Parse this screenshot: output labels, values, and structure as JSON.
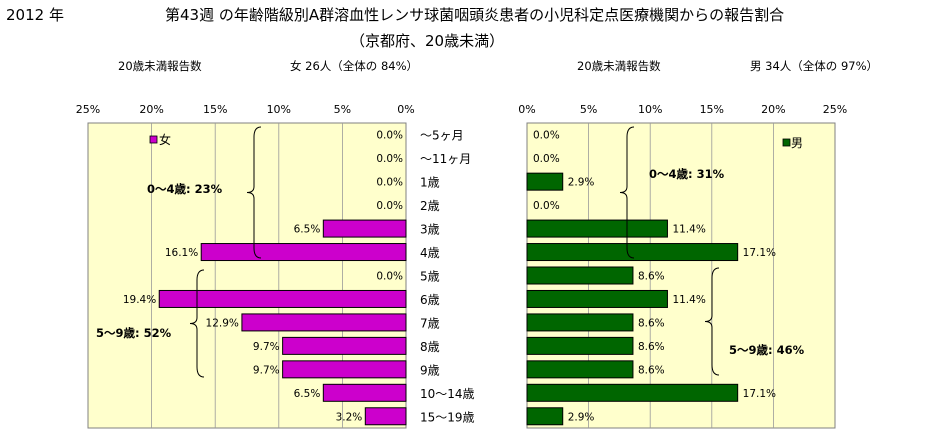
{
  "header": {
    "year": "2012 年",
    "title_line1": "第43週 の年齢階級別A群溶血性レンサ球菌咽頭炎患者の小児科定点医療機関からの報告割合",
    "title_line2": "（京都府、20歳未満）"
  },
  "female_panel": {
    "subtitle_left": "20歳未満報告数",
    "subtitle_right": "女  26人（全体の  84%）",
    "legend": "女",
    "bracket_label_1": "0〜4歳:  23%",
    "bracket_label_2": "5〜9歳:  52%"
  },
  "male_panel": {
    "subtitle_left": "20歳未満報告数",
    "subtitle_right": "男  34人（全体の  97%）",
    "legend": "男",
    "bracket_label_1": "0〜4歳:  31%",
    "bracket_label_2": "5〜9歳:  46%"
  },
  "colors": {
    "female": "#CC00CC",
    "male": "#006600",
    "plot_bg": "#FFFFCC"
  },
  "chart_data": [
    {
      "type": "bar",
      "orientation": "horizontal",
      "direction": "right-to-left",
      "categories": [
        "〜5ヶ月",
        "〜11ヶ月",
        "1歳",
        "2歳",
        "3歳",
        "4歳",
        "5歳",
        "6歳",
        "7歳",
        "8歳",
        "9歳",
        "10〜14歳",
        "15〜19歳"
      ],
      "series": [
        {
          "name": "女",
          "values": [
            0.0,
            0.0,
            0.0,
            0.0,
            6.5,
            16.1,
            0.0,
            19.4,
            12.9,
            9.7,
            9.7,
            6.5,
            3.2
          ]
        }
      ],
      "value_labels": [
        "0.0%",
        "0.0%",
        "0.0%",
        "0.0%",
        "6.5%",
        "16.1%",
        "0.0%",
        "19.4%",
        "12.9%",
        "9.7%",
        "9.7%",
        "6.5%",
        "3.2%"
      ],
      "xticks": [
        "25%",
        "20%",
        "15%",
        "10%",
        "5%",
        "0%"
      ],
      "xlim": [
        0,
        25
      ],
      "grid": "vertical",
      "legend_position": "top-left"
    },
    {
      "type": "bar",
      "orientation": "horizontal",
      "direction": "left-to-right",
      "categories": [
        "〜5ヶ月",
        "〜11ヶ月",
        "1歳",
        "2歳",
        "3歳",
        "4歳",
        "5歳",
        "6歳",
        "7歳",
        "8歳",
        "9歳",
        "10〜14歳",
        "15〜19歳"
      ],
      "series": [
        {
          "name": "男",
          "values": [
            0.0,
            0.0,
            2.9,
            0.0,
            11.4,
            17.1,
            8.6,
            11.4,
            8.6,
            8.6,
            8.6,
            17.1,
            2.9
          ]
        }
      ],
      "value_labels": [
        "0.0%",
        "0.0%",
        "2.9%",
        "0.0%",
        "11.4%",
        "17.1%",
        "8.6%",
        "11.4%",
        "8.6%",
        "8.6%",
        "8.6%",
        "17.1%",
        "2.9%"
      ],
      "xticks": [
        "0%",
        "5%",
        "10%",
        "15%",
        "20%",
        "25%"
      ],
      "xlim": [
        0,
        25
      ],
      "grid": "vertical",
      "legend_position": "top-right"
    }
  ]
}
